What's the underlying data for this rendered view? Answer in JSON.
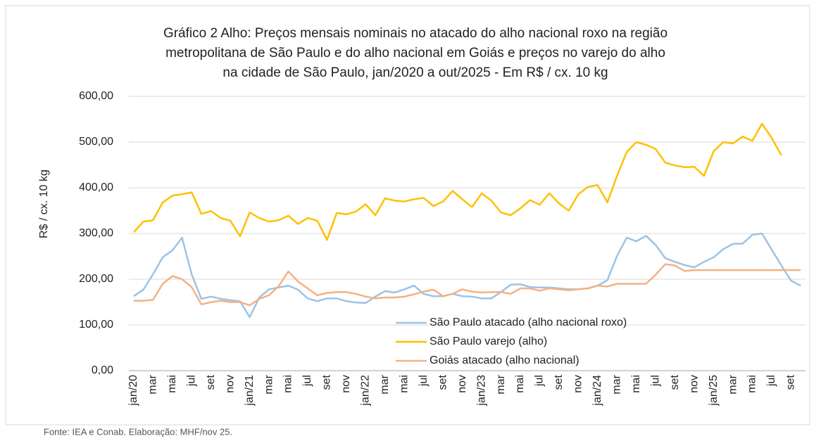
{
  "chart_data": {
    "type": "line",
    "title": [
      "Gráfico 2    Alho: Preços mensais nominais no atacado do alho nacional roxo na região",
      "metropolitana de São Paulo e do alho nacional em Goiás e preços no varejo do alho",
      "na cidade de São Paulo, jan/2020 a out/2025 - Em R$ / cx. 10 kg"
    ],
    "ylabel": "R$ / cx. 10 kg",
    "source": "Fonte: IEA e Conab. Elaboração: MHF/nov 25.",
    "categories": [
      "jan/20",
      null,
      "mar",
      null,
      "mai",
      null,
      "jul",
      null,
      "set",
      null,
      "nov",
      null,
      "jan/21",
      null,
      "mar",
      null,
      "mai",
      null,
      "jul",
      null,
      "set",
      null,
      "nov",
      null,
      "jan/22",
      null,
      "mar",
      null,
      "mai",
      null,
      "jul",
      null,
      "set",
      null,
      "nov",
      null,
      "jan/23",
      null,
      "mar",
      null,
      "mai",
      null,
      "jul",
      null,
      "set",
      null,
      "nov",
      null,
      "jan/24",
      null,
      "mar",
      null,
      "mai",
      null,
      "jul",
      null,
      "set",
      null,
      "nov",
      null,
      "jan/25",
      null,
      "mar",
      null,
      "mai",
      null,
      "jul",
      null,
      "set",
      null
    ],
    "series": [
      {
        "name": "São Paulo atacado (alho nacional roxo)",
        "color": "#9dc3e6",
        "values": [
          163,
          177,
          211,
          248,
          263,
          291,
          211,
          157,
          162,
          157,
          154,
          152,
          117,
          160,
          178,
          182,
          186,
          177,
          158,
          152,
          158,
          158,
          152,
          149,
          148,
          162,
          174,
          171,
          178,
          186,
          168,
          163,
          163,
          168,
          163,
          162,
          158,
          158,
          172,
          188,
          189,
          183,
          182,
          182,
          180,
          178,
          178,
          180,
          186,
          198,
          251,
          291,
          283,
          295,
          275,
          246,
          238,
          231,
          226,
          238,
          248,
          266,
          277,
          278,
          297,
          300,
          265,
          230,
          197,
          186
        ]
      },
      {
        "name": "São Paulo varejo (alho)",
        "color": "#ffc000",
        "values": [
          303,
          326,
          329,
          368,
          383,
          386,
          390,
          343,
          349,
          334,
          328,
          294,
          346,
          334,
          326,
          329,
          339,
          321,
          334,
          328,
          286,
          345,
          342,
          348,
          364,
          340,
          377,
          372,
          370,
          375,
          378,
          360,
          370,
          393,
          375,
          358,
          388,
          372,
          346,
          340,
          355,
          373,
          363,
          388,
          366,
          350,
          386,
          402,
          406,
          368,
          426,
          478,
          500,
          494,
          485,
          455,
          449,
          445,
          446,
          426,
          480,
          500,
          497,
          512,
          503,
          540,
          509,
          471,
          null,
          null
        ]
      },
      {
        "name": "Goiás atacado (alho nacional)",
        "color": "#f4b183",
        "values": [
          153,
          153,
          155,
          190,
          207,
          200,
          183,
          145,
          150,
          153,
          150,
          150,
          143,
          157,
          165,
          185,
          217,
          195,
          180,
          165,
          170,
          172,
          172,
          168,
          162,
          158,
          160,
          160,
          162,
          167,
          173,
          177,
          163,
          168,
          178,
          173,
          171,
          172,
          172,
          168,
          180,
          180,
          175,
          180,
          178,
          176,
          178,
          180,
          186,
          184,
          190,
          190,
          190,
          190,
          210,
          233,
          230,
          218,
          220,
          220,
          220,
          220,
          220,
          220,
          220,
          220,
          220,
          220,
          220,
          220
        ]
      }
    ],
    "ylim": [
      0,
      600
    ],
    "yticks": [
      {
        "value": 0,
        "label": "0,00"
      },
      {
        "value": 100,
        "label": "100,00"
      },
      {
        "value": 200,
        "label": "200,00"
      },
      {
        "value": 300,
        "label": "300,00"
      },
      {
        "value": 400,
        "label": "400,00"
      },
      {
        "value": 500,
        "label": "500,00"
      },
      {
        "value": 600,
        "label": "600,00"
      }
    ],
    "grid": true
  }
}
